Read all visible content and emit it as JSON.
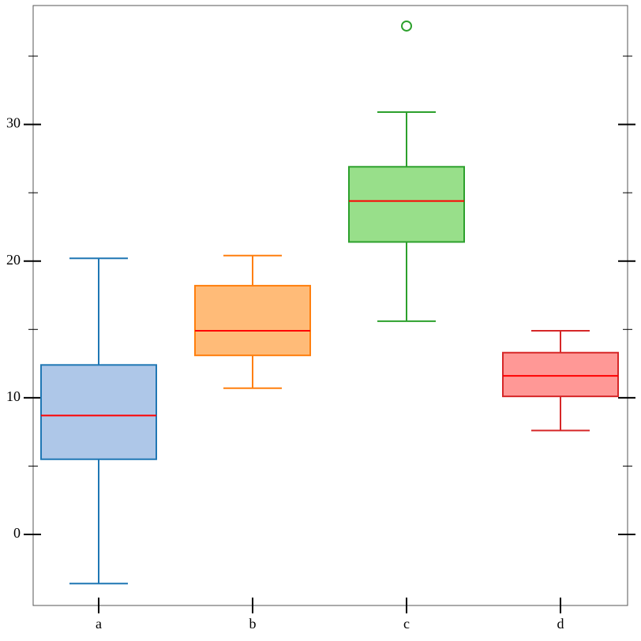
{
  "chart_data": {
    "type": "box",
    "categories": [
      "a",
      "b",
      "c",
      "d"
    ],
    "boxes": [
      {
        "low": -3.6,
        "q1": 5.5,
        "median": 8.7,
        "q3": 12.4,
        "high": 20.2,
        "outliers": [],
        "color": "#1f77b4",
        "fill": "#aec7e8"
      },
      {
        "low": 10.7,
        "q1": 13.1,
        "median": 14.9,
        "q3": 18.2,
        "high": 20.4,
        "outliers": [],
        "color": "#ff7f0e",
        "fill": "#ffbb78"
      },
      {
        "low": 15.6,
        "q1": 21.4,
        "median": 24.4,
        "q3": 26.9,
        "high": 30.9,
        "outliers": [
          37.2
        ],
        "color": "#2ca02c",
        "fill": "#98df8a"
      },
      {
        "low": 7.6,
        "q1": 10.1,
        "median": 11.6,
        "q3": 13.3,
        "high": 14.9,
        "outliers": [],
        "color": "#d62728",
        "fill": "#ff9896"
      }
    ],
    "median_color": "#ff0000",
    "ylim": [
      -5.2,
      38.7
    ],
    "yticks": [
      0,
      10,
      20,
      30
    ],
    "yminorticks": [
      5,
      15,
      25,
      35
    ]
  }
}
